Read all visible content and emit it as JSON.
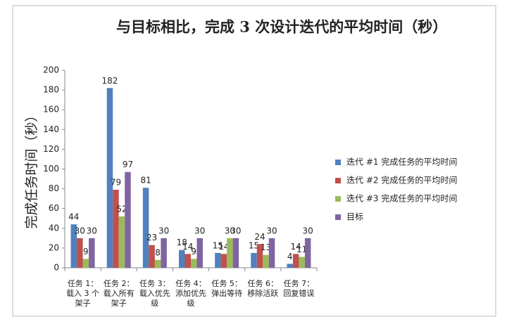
{
  "chart_data": {
    "type": "bar",
    "title": "与目标相比，完成 3 次设计迭代的平均时间（秒）",
    "y_label": "完成任务时间（秒）",
    "categories": [
      "任务 1：载入 3 个架子",
      "任务 2：载入所有架子",
      "任务 3：载入优先级",
      "任务 4：添加优先级",
      "任务 5：弹出等待",
      "任务 6：移除活跃",
      "任务 7：回复错误"
    ],
    "series": [
      {
        "name": "迭代 #1 完成任务的平均时间",
        "color": "#4f81bd",
        "values": [
          44,
          182,
          81,
          18,
          15,
          15,
          4
        ]
      },
      {
        "name": "迭代 #2 完成任务的平均时间",
        "color": "#c0504d",
        "values": [
          30,
          79,
          23,
          14,
          14,
          24,
          14
        ]
      },
      {
        "name": "迭代 #3 完成任务的平均时间",
        "color": "#9bbb59",
        "values": [
          9,
          52,
          8,
          9,
          30,
          13,
          11
        ]
      },
      {
        "name": "目标",
        "color": "#8064a2",
        "values": [
          30,
          97,
          30,
          30,
          30,
          30,
          30
        ]
      }
    ],
    "ylim": [
      0,
      200
    ],
    "yticks": [
      0,
      20,
      40,
      60,
      80,
      100,
      120,
      140,
      160,
      180,
      200
    ],
    "legend": "right"
  }
}
